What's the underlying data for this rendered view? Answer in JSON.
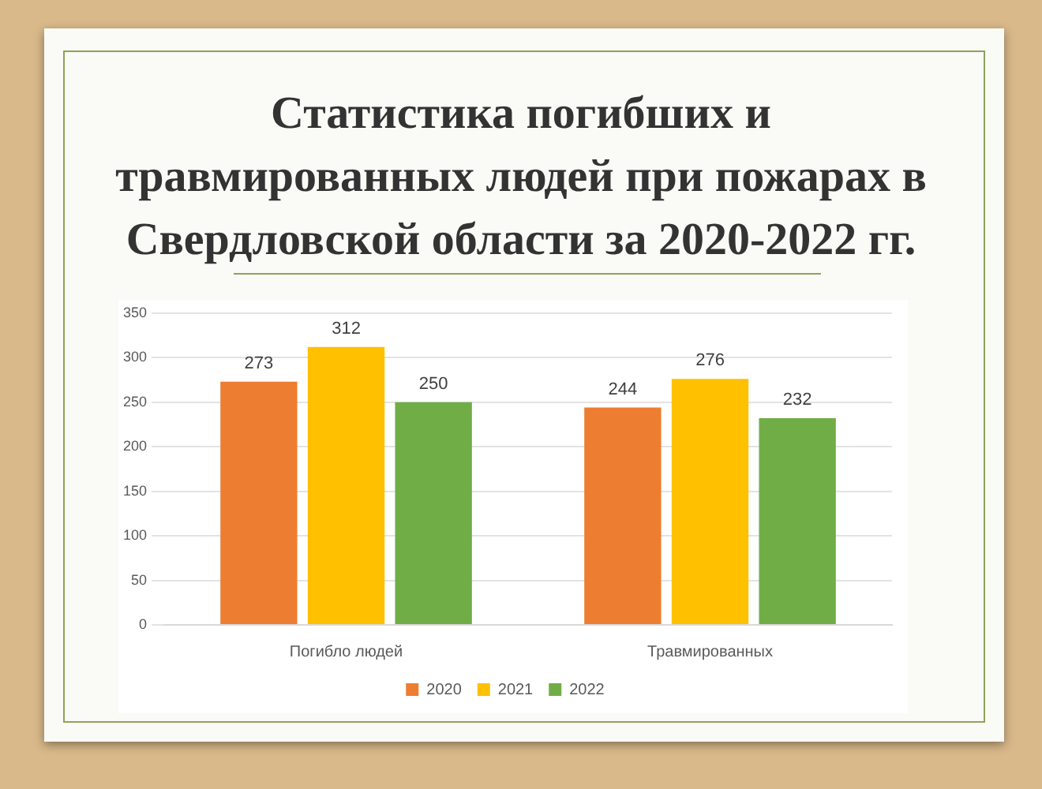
{
  "chart_data": {
    "type": "bar",
    "title": "Статистика погибших и травмированных людей при пожарах в Свердловской области за 2020-2022 гг.",
    "categories": [
      "Погибло людей",
      "Травмированных"
    ],
    "series": [
      {
        "name": "2020",
        "color": "#ed7d31",
        "values": [
          273,
          244
        ]
      },
      {
        "name": "2021",
        "color": "#ffc000",
        "values": [
          312,
          276
        ]
      },
      {
        "name": "2022",
        "color": "#70ad47",
        "values": [
          250,
          232
        ]
      }
    ],
    "ylim": [
      0,
      350
    ],
    "yticks": [
      0,
      50,
      100,
      150,
      200,
      250,
      300,
      350
    ],
    "grid": "y",
    "legend": "bottom",
    "data_labels": true
  }
}
